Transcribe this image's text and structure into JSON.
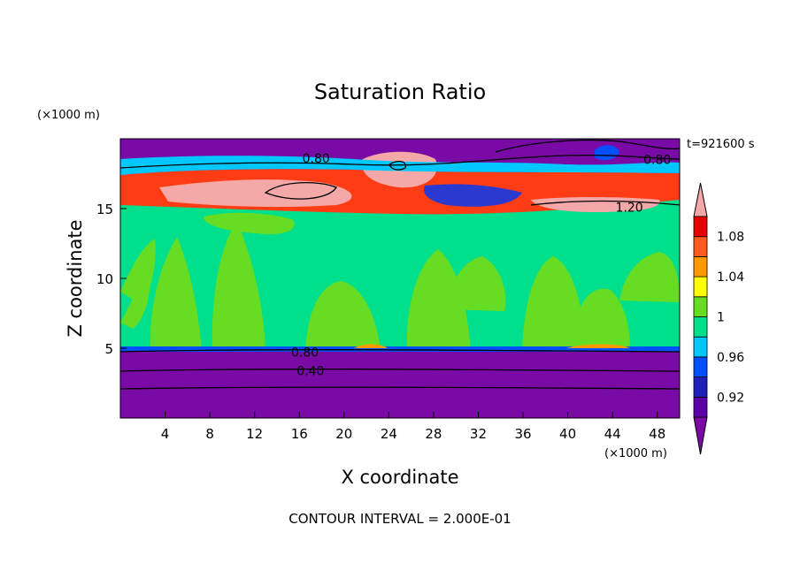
{
  "chart_data": {
    "type": "heatmap",
    "title": "Saturation Ratio",
    "xlabel": "X coordinate",
    "ylabel": "Z coordinate",
    "x_unit_label": "(×1000 m)",
    "y_unit_label": "(×1000 m)",
    "time_label": "t=921600 s",
    "footer": "CONTOUR INTERVAL = 2.000E-01",
    "xlim": [
      0,
      50
    ],
    "ylim": [
      0,
      20
    ],
    "x_ticks": [
      4,
      8,
      12,
      16,
      20,
      24,
      28,
      32,
      36,
      40,
      44,
      48
    ],
    "y_ticks": [
      5,
      10,
      15
    ],
    "contour_labels": [
      {
        "text": "0.80",
        "x": 17.5,
        "y": 18.6
      },
      {
        "text": "0.80",
        "x": 48.0,
        "y": 18.5
      },
      {
        "text": "1.20",
        "x": 45.5,
        "y": 15.1
      },
      {
        "text": "0.80",
        "x": 16.5,
        "y": 4.7
      },
      {
        "text": "0.40",
        "x": 17.0,
        "y": 3.4
      }
    ],
    "colorbar": {
      "levels": [
        0.9,
        0.92,
        0.94,
        0.96,
        0.98,
        1.0,
        1.02,
        1.04,
        1.06,
        1.08,
        1.1
      ],
      "tick_labels": [
        "0.92",
        "0.96",
        "1",
        "1.04",
        "1.08"
      ],
      "colors": [
        "#5c00a8",
        "#2020b8",
        "#0050ff",
        "#00c8ff",
        "#00e08c",
        "#66dd22",
        "#ffff00",
        "#ff9900",
        "#ff5a1e",
        "#e60000"
      ],
      "under_color": "#7a0aa6",
      "over_color": "#f4a8a8"
    }
  },
  "colors": {
    "deep_purple": "#7a0aa6",
    "teal": "#00e08c",
    "green": "#66dd22",
    "pink": "#f4a8a8",
    "red": "#ff3c14",
    "blue": "#2a3ad0"
  }
}
